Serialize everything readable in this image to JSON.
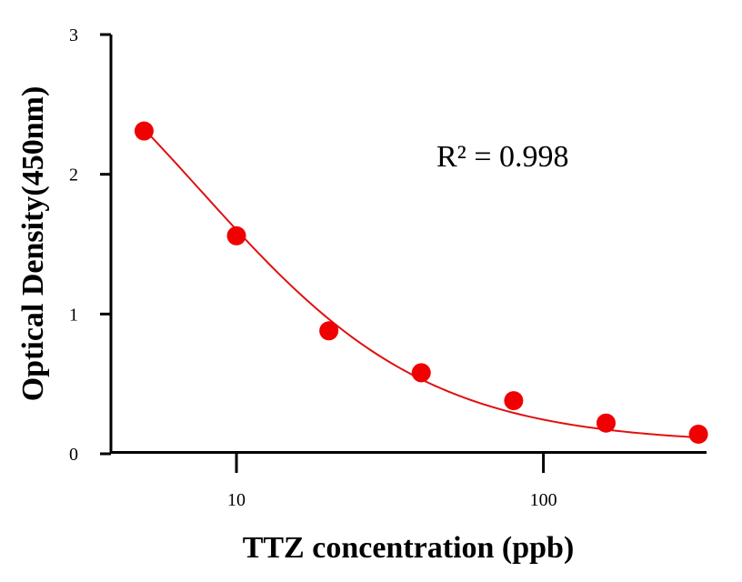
{
  "chart_data": {
    "type": "scatter",
    "x_scale": "log",
    "xlabel": "TTZ concentration (ppb)",
    "ylabel": "Optical Density(450nm)",
    "xlim": [
      3.9,
      340
    ],
    "ylim": [
      0,
      3
    ],
    "x_ticks": [
      10,
      100
    ],
    "x_tick_labels": [
      "10",
      "100"
    ],
    "y_ticks": [
      0,
      1,
      2,
      3
    ],
    "y_tick_labels": [
      "0",
      "1",
      "2",
      "3"
    ],
    "series": [
      {
        "x": [
          5,
          10,
          20,
          40,
          80,
          160,
          320
        ],
        "y": [
          2.31,
          1.56,
          0.88,
          0.58,
          0.38,
          0.22,
          0.14
        ],
        "color": "#f00000"
      }
    ],
    "fit": {
      "type": "four-parameter logistic",
      "color": "#e01010",
      "params": {
        "A": 3.71,
        "B": 1.16,
        "C": 7.6,
        "D": 0.07
      }
    },
    "annotations": [
      "R² = 0.998"
    ],
    "grid": false
  }
}
